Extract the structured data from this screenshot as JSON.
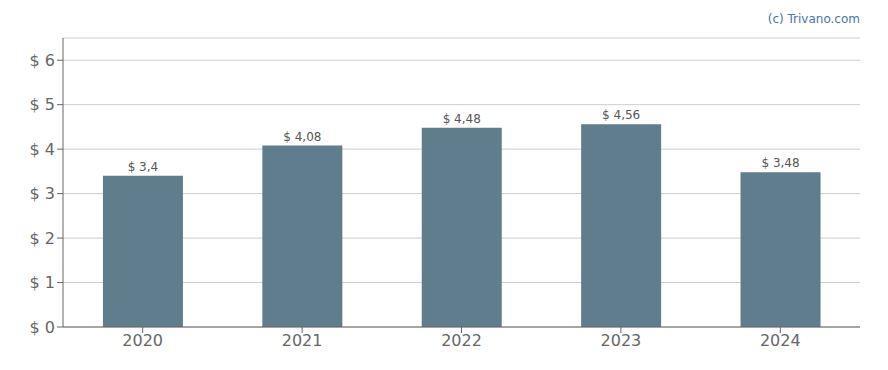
{
  "chart_data": {
    "type": "bar",
    "categories": [
      "2020",
      "2021",
      "2022",
      "2023",
      "2024"
    ],
    "values": [
      3.4,
      4.08,
      4.48,
      4.56,
      3.48
    ],
    "value_labels": [
      "$ 3,4",
      "$ 4,08",
      "$ 4,48",
      "$ 4,56",
      "$ 3,48"
    ],
    "color": "#5f7d8c",
    "ylim": [
      0,
      6.5
    ],
    "yticks": [
      {
        "value": 0,
        "label": "$ 0"
      },
      {
        "value": 1,
        "label": "$ 1"
      },
      {
        "value": 2,
        "label": "$ 2"
      },
      {
        "value": 3,
        "label": "$ 3"
      },
      {
        "value": 4,
        "label": "$ 4"
      },
      {
        "value": 5,
        "label": "$ 5"
      },
      {
        "value": 6,
        "label": "$ 6"
      }
    ],
    "grid": true,
    "annotation": "(c) Trivano.com"
  }
}
